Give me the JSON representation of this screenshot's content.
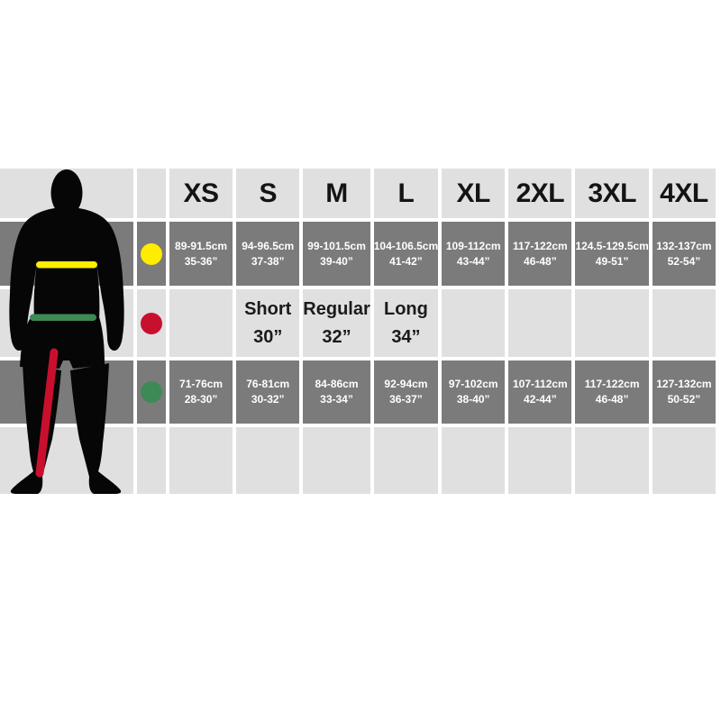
{
  "page": {
    "background": "#ffffff",
    "description_label": "Menswear size chart with body silhouette"
  },
  "colors": {
    "cell_light": "#e0e0e0",
    "cell_dark": "#7b7b7b",
    "text_on_light": "#161616",
    "text_on_dark": "#ffffff",
    "yellow": "#ffec00",
    "red": "#c8102e",
    "green": "#3e8a57",
    "silhouette": "#060606"
  },
  "chart_data": {
    "type": "table",
    "title": "",
    "columns": [
      "XS",
      "S",
      "M",
      "L",
      "XL",
      "2XL",
      "3XL",
      "4XL"
    ],
    "rows": [
      {
        "id": "chest",
        "marker": "yellow-dot",
        "marker_color": "#ffec00",
        "cells": [
          [
            "89-91.5cm",
            "35-36”"
          ],
          [
            "94-96.5cm",
            "37-38”"
          ],
          [
            "99-101.5cm",
            "39-40”"
          ],
          [
            "104-106.5cm",
            "41-42”"
          ],
          [
            "109-112cm",
            "43-44”"
          ],
          [
            "117-122cm",
            "46-48”"
          ],
          [
            "124.5-129.5cm",
            "49-51”"
          ],
          [
            "132-137cm",
            "52-54”"
          ]
        ]
      },
      {
        "id": "inside-leg",
        "marker": "red-dot",
        "marker_color": "#c8102e",
        "cells": [
          [
            "",
            ""
          ],
          [
            "Short",
            "30”"
          ],
          [
            "Regular",
            "32”"
          ],
          [
            "Long",
            "34”"
          ],
          [
            "",
            ""
          ],
          [
            "",
            ""
          ],
          [
            "",
            ""
          ],
          [
            "",
            ""
          ]
        ]
      },
      {
        "id": "waist",
        "marker": "green-dot",
        "marker_color": "#3e8a57",
        "cells": [
          [
            "71-76cm",
            "28-30”"
          ],
          [
            "76-81cm",
            "30-32”"
          ],
          [
            "84-86cm",
            "33-34”"
          ],
          [
            "92-94cm",
            "36-37”"
          ],
          [
            "97-102cm",
            "38-40”"
          ],
          [
            "107-112cm",
            "42-44”"
          ],
          [
            "117-122cm",
            "46-48”"
          ],
          [
            "127-132cm",
            "50-52”"
          ]
        ]
      }
    ],
    "empty_bottom_row": true,
    "legend_position": "left-marker-column",
    "grid": "white gaps between cells, alternating light/dark row shading"
  },
  "figure": {
    "kind": "male-body-silhouette",
    "color": "#060606",
    "chest_line_color": "#ffec00",
    "waist_line_color": "#3e8a57",
    "inseam_line_color": "#c8102e"
  }
}
